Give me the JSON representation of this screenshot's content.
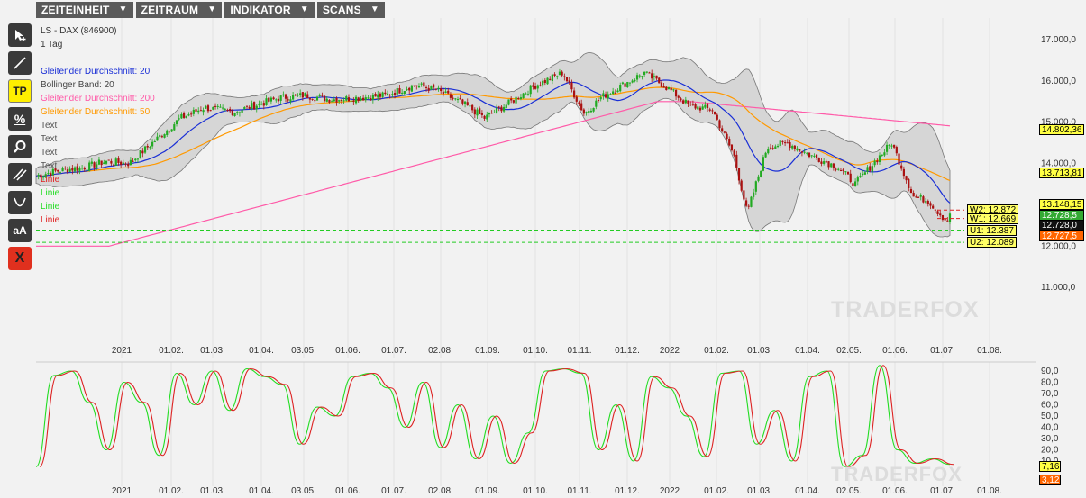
{
  "menu": [
    {
      "label": "ZEITEINHEIT",
      "name": "menu-zeiteinheit"
    },
    {
      "label": "ZEITRAUM",
      "name": "menu-zeitraum"
    },
    {
      "label": "INDIKATOR",
      "name": "menu-indikator"
    },
    {
      "label": "SCANS",
      "name": "menu-scans"
    }
  ],
  "tools": [
    {
      "name": "pointer-tool",
      "icon": "cursor-icon",
      "label": ""
    },
    {
      "name": "line-tool",
      "icon": "line-icon",
      "label": ""
    },
    {
      "name": "tp-tool",
      "icon": "tp-icon",
      "label": "TP"
    },
    {
      "name": "percent-tool",
      "icon": "percent-icon",
      "label": "%"
    },
    {
      "name": "zoom-tool",
      "icon": "magnifier-icon",
      "label": ""
    },
    {
      "name": "channel-tool",
      "icon": "parallel-lines-icon",
      "label": ""
    },
    {
      "name": "curve-tool",
      "icon": "arc-icon",
      "label": ""
    },
    {
      "name": "text-tool",
      "icon": "text-icon",
      "label": "aA"
    },
    {
      "name": "delete-tool",
      "icon": "delete-icon",
      "label": "X"
    }
  ],
  "legend": {
    "title": "LS - DAX (846900)",
    "period": "1 Tag",
    "items": [
      {
        "label": "Gleitender Durchschnitt: 20",
        "color": "#1a2fd6"
      },
      {
        "label": "Bollinger Band: 20",
        "color": "#444444"
      },
      {
        "label": "Gleitender Durchschnitt: 200",
        "color": "#ff5aa8"
      },
      {
        "label": "Gleitender Durchschnitt: 50",
        "color": "#ff9900"
      },
      {
        "label": "Text",
        "color": "#555555"
      },
      {
        "label": "Text",
        "color": "#555555"
      },
      {
        "label": "Text",
        "color": "#555555"
      },
      {
        "label": "Text",
        "color": "#555555"
      },
      {
        "label": "Linie",
        "color": "#e02020"
      },
      {
        "label": "Linie",
        "color": "#22dd22"
      },
      {
        "label": "Linie",
        "color": "#22dd22"
      },
      {
        "label": "Linie",
        "color": "#e02020"
      }
    ]
  },
  "axis": {
    "price_ticks": [
      "17.000,0",
      "16.000,0",
      "15.000,0",
      "14.000,0",
      "13.000,0",
      "12.000,0",
      "11.000,0"
    ],
    "osc_ticks": [
      "90,0",
      "80,0",
      "70,0",
      "60,0",
      "50,0",
      "40,0",
      "30,0",
      "20,0",
      "10,0"
    ],
    "date_ticks": [
      "2021",
      "01.02.",
      "01.03.",
      "01.04.",
      "03.05.",
      "01.06.",
      "01.07.",
      "02.08.",
      "01.09.",
      "01.10.",
      "01.11.",
      "01.12.",
      "2022",
      "01.02.",
      "01.03.",
      "01.04.",
      "02.05.",
      "01.06.",
      "01.07.",
      "01.08."
    ]
  },
  "price_tags": [
    {
      "label": "14.802,36",
      "style": "yellow"
    },
    {
      "label": "13.713,81",
      "style": "yellow"
    },
    {
      "label": "13.148,15",
      "style": "yellow"
    },
    {
      "label": "12.728,5",
      "style": "green"
    },
    {
      "label": "12.728,0",
      "style": "black"
    },
    {
      "label": "12.727,5",
      "style": "orange"
    }
  ],
  "level_lines": [
    {
      "label": "W2: 12.872",
      "value": 12872,
      "color": "#e02020"
    },
    {
      "label": "W1: 12.669",
      "value": 12669,
      "color": "#e02020"
    },
    {
      "label": "U1: 12.387",
      "value": 12387,
      "color": "#22cc22"
    },
    {
      "label": "U2: 12.089",
      "value": 12089,
      "color": "#22cc22"
    }
  ],
  "osc_tags": [
    {
      "label": "7,16",
      "style": "yellow"
    },
    {
      "label": "3,12",
      "style": "orange"
    }
  ],
  "watermark": "TRADERFOX",
  "colors": {
    "up": "#22aa22",
    "down": "#aa1111",
    "ma20": "#1a2fd6",
    "ma50": "#ff9900",
    "ma200": "#ff5aa8",
    "band_fill": "#d6d6d6",
    "osc_k": "#22dd22",
    "osc_d": "#dd2222"
  },
  "chart_data": {
    "type": "candlestick",
    "title": "LS - DAX (846900)",
    "ylim": [
      10600,
      17300
    ],
    "keypoints": [
      {
        "date": "2021-01-04",
        "close": 13700
      },
      {
        "date": "2021-01-20",
        "close": 13850
      },
      {
        "date": "2021-02-01",
        "close": 13900
      },
      {
        "date": "2021-02-15",
        "close": 14050
      },
      {
        "date": "2021-03-01",
        "close": 14000
      },
      {
        "date": "2021-03-15",
        "close": 14500
      },
      {
        "date": "2021-04-01",
        "close": 15100
      },
      {
        "date": "2021-04-15",
        "close": 15350
      },
      {
        "date": "2021-05-03",
        "close": 15250
      },
      {
        "date": "2021-05-15",
        "close": 15400
      },
      {
        "date": "2021-06-01",
        "close": 15600
      },
      {
        "date": "2021-06-15",
        "close": 15650
      },
      {
        "date": "2021-07-01",
        "close": 15550
      },
      {
        "date": "2021-07-20",
        "close": 15600
      },
      {
        "date": "2021-08-02",
        "close": 15650
      },
      {
        "date": "2021-08-20",
        "close": 15900
      },
      {
        "date": "2021-09-01",
        "close": 15800
      },
      {
        "date": "2021-09-20",
        "close": 15400
      },
      {
        "date": "2021-10-01",
        "close": 15100
      },
      {
        "date": "2021-10-15",
        "close": 15450
      },
      {
        "date": "2021-11-01",
        "close": 15900
      },
      {
        "date": "2021-11-17",
        "close": 16200
      },
      {
        "date": "2021-11-30",
        "close": 15200
      },
      {
        "date": "2021-12-10",
        "close": 15600
      },
      {
        "date": "2022-01-05",
        "close": 16200
      },
      {
        "date": "2022-01-20",
        "close": 15800
      },
      {
        "date": "2022-02-01",
        "close": 15400
      },
      {
        "date": "2022-02-15",
        "close": 15300
      },
      {
        "date": "2022-02-28",
        "close": 14200
      },
      {
        "date": "2022-03-08",
        "close": 12800
      },
      {
        "date": "2022-03-20",
        "close": 14400
      },
      {
        "date": "2022-04-01",
        "close": 14500
      },
      {
        "date": "2022-04-15",
        "close": 14200
      },
      {
        "date": "2022-05-02",
        "close": 13900
      },
      {
        "date": "2022-05-12",
        "close": 13500
      },
      {
        "date": "2022-05-25",
        "close": 14100
      },
      {
        "date": "2022-06-03",
        "close": 14500
      },
      {
        "date": "2022-06-16",
        "close": 13200
      },
      {
        "date": "2022-06-25",
        "close": 13100
      },
      {
        "date": "2022-07-06",
        "close": 12600
      },
      {
        "date": "2022-07-08",
        "close": 12728
      }
    ],
    "oscillator": {
      "type": "line",
      "ylim": [
        0,
        95
      ],
      "series": [
        {
          "values": [
            5,
            86,
            90,
            62,
            20,
            80,
            62,
            15,
            88,
            60,
            90,
            55,
            92,
            85,
            78,
            25,
            58,
            50,
            85,
            88,
            75,
            40,
            80,
            22,
            60,
            12,
            50,
            8,
            35,
            90,
            92,
            88,
            20,
            60,
            10,
            85,
            75,
            50,
            14,
            88,
            90,
            25,
            55,
            10,
            85,
            90,
            5,
            15,
            95,
            20,
            8,
            12,
            7
          ]
        }
      ]
    }
  }
}
